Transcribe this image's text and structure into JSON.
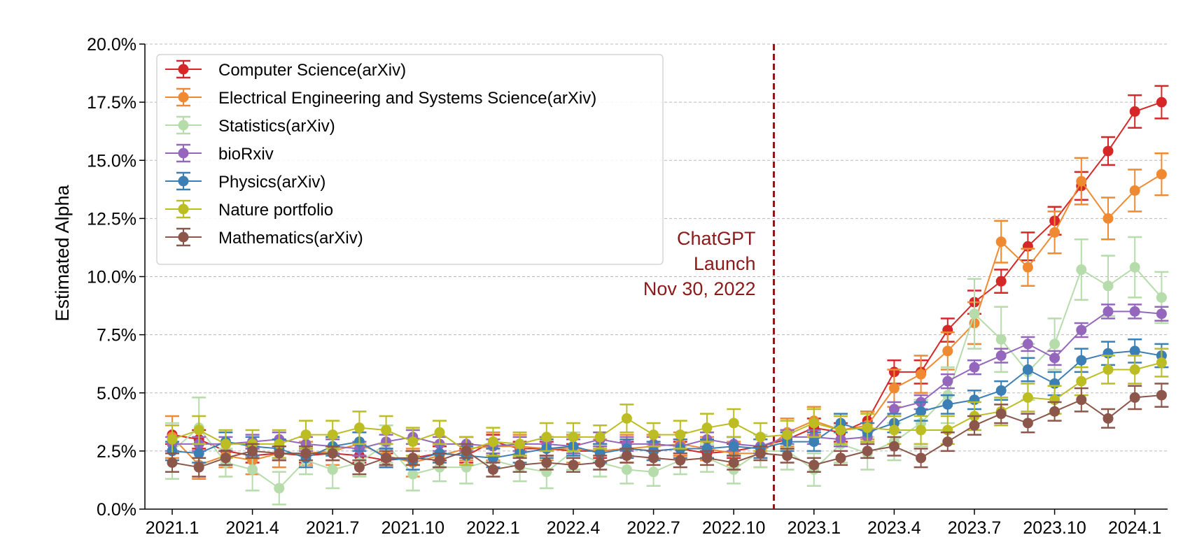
{
  "chart_data": {
    "type": "line",
    "title": "",
    "xlabel": "",
    "ylabel": "Estimated Alpha",
    "y_unit": "%",
    "ylim": [
      0,
      20
    ],
    "y_ticks": [
      0,
      2.5,
      5,
      7.5,
      10,
      12.5,
      15,
      17.5,
      20
    ],
    "y_tick_labels": [
      "0.0%",
      "2.5%",
      "5.0%",
      "7.5%",
      "10.0%",
      "12.5%",
      "15.0%",
      "17.5%",
      "20.0%"
    ],
    "x": [
      "2021.1",
      "2021.2",
      "2021.3",
      "2021.4",
      "2021.5",
      "2021.6",
      "2021.7",
      "2021.8",
      "2021.9",
      "2021.10",
      "2021.11",
      "2021.12",
      "2022.1",
      "2022.2",
      "2022.3",
      "2022.4",
      "2022.5",
      "2022.6",
      "2022.7",
      "2022.8",
      "2022.9",
      "2022.10",
      "2022.11",
      "2022.12",
      "2023.1",
      "2023.2",
      "2023.3",
      "2023.4",
      "2023.5",
      "2023.6",
      "2023.7",
      "2023.8",
      "2023.9",
      "2023.10",
      "2023.11",
      "2023.12",
      "2024.1",
      "2024.2"
    ],
    "x_ticks": [
      "2021.1",
      "2021.4",
      "2021.7",
      "2021.10",
      "2022.1",
      "2022.4",
      "2022.7",
      "2022.10",
      "2023.1",
      "2023.4",
      "2023.7",
      "2023.10",
      "2024.1"
    ],
    "grid": "horizontal",
    "legend_position": "top-left",
    "annotation": {
      "lines": [
        "ChatGPT",
        "Launch",
        "Nov 30, 2022"
      ],
      "x_position": 22.5,
      "color": "#8b1a1a"
    },
    "series": [
      {
        "name": "Computer Science(arXiv)",
        "color": "#d62728",
        "marker_color": "#d62728",
        "values": [
          3.2,
          3.0,
          2.5,
          2.3,
          2.4,
          2.3,
          2.4,
          2.3,
          2.1,
          2.2,
          2.4,
          2.3,
          2.9,
          2.6,
          2.6,
          2.5,
          2.5,
          2.6,
          2.5,
          2.6,
          2.4,
          2.5,
          2.7,
          3.0,
          3.5,
          3.3,
          3.8,
          5.9,
          5.9,
          7.7,
          8.9,
          9.8,
          11.3,
          12.4,
          13.9,
          15.4,
          17.1,
          17.5
        ],
        "errors": [
          0.4,
          0.4,
          0.3,
          0.3,
          0.3,
          0.3,
          0.3,
          0.3,
          0.3,
          0.3,
          0.3,
          0.3,
          0.3,
          0.3,
          0.3,
          0.3,
          0.3,
          0.3,
          0.3,
          0.3,
          0.3,
          0.3,
          0.3,
          0.4,
          0.4,
          0.4,
          0.4,
          0.5,
          0.5,
          0.5,
          0.5,
          0.5,
          0.6,
          0.6,
          0.6,
          0.6,
          0.7,
          0.7
        ]
      },
      {
        "name": "Electrical Engineering and Systems Science(arXiv)",
        "color": "#f08a32",
        "marker_color": "#f08a32",
        "values": [
          3.1,
          1.9,
          2.3,
          2.1,
          2.4,
          2.4,
          2.5,
          2.8,
          2.3,
          2.0,
          2.3,
          2.6,
          2.7,
          2.7,
          2.6,
          2.6,
          2.5,
          2.6,
          2.7,
          2.8,
          2.6,
          2.4,
          2.4,
          3.3,
          3.8,
          3.4,
          3.6,
          5.2,
          5.8,
          6.8,
          8.0,
          11.5,
          10.4,
          11.9,
          14.1,
          12.5,
          13.7,
          14.4
        ],
        "errors": [
          0.9,
          0.6,
          0.5,
          0.6,
          0.6,
          0.5,
          0.6,
          0.5,
          0.5,
          0.6,
          0.5,
          0.5,
          0.6,
          0.5,
          0.5,
          0.6,
          0.5,
          0.6,
          0.5,
          0.5,
          0.5,
          0.5,
          0.6,
          0.6,
          0.6,
          0.6,
          0.6,
          0.8,
          0.8,
          0.8,
          0.9,
          0.9,
          0.8,
          0.9,
          1.0,
          0.9,
          0.9,
          0.9
        ]
      },
      {
        "name": "Statistics(arXiv)",
        "color": "#b5dcaa",
        "marker_color": "#b5dcaa",
        "values": [
          2.5,
          3.5,
          2.0,
          1.7,
          0.9,
          2.1,
          1.7,
          2.0,
          2.8,
          1.5,
          1.8,
          1.8,
          2.1,
          1.8,
          1.6,
          2.5,
          2.0,
          1.7,
          1.6,
          2.1,
          2.2,
          1.7,
          2.5,
          2.5,
          1.7,
          2.8,
          2.4,
          2.9,
          3.7,
          4.9,
          8.4,
          7.3,
          5.9,
          7.1,
          10.3,
          9.6,
          10.4,
          9.1
        ],
        "errors": [
          1.2,
          1.3,
          0.6,
          0.9,
          0.7,
          0.6,
          0.8,
          0.6,
          0.8,
          0.7,
          0.6,
          0.7,
          0.7,
          0.6,
          0.7,
          0.8,
          0.6,
          0.6,
          0.6,
          0.6,
          0.6,
          0.6,
          0.7,
          0.8,
          0.7,
          0.8,
          0.7,
          0.8,
          1.0,
          1.2,
          1.5,
          1.4,
          1.2,
          1.1,
          1.3,
          1.3,
          1.3,
          1.1
        ]
      },
      {
        "name": "bioRxiv",
        "color": "#9467bd",
        "marker_color": "#9467bd",
        "values": [
          2.8,
          2.8,
          2.8,
          2.9,
          3.0,
          2.8,
          2.7,
          2.6,
          2.9,
          3.1,
          2.8,
          2.8,
          2.7,
          2.8,
          2.8,
          2.7,
          3.0,
          2.8,
          2.8,
          2.7,
          3.0,
          2.8,
          2.7,
          3.1,
          3.1,
          3.0,
          3.1,
          4.3,
          4.6,
          5.5,
          6.1,
          6.6,
          7.1,
          6.5,
          7.7,
          8.5,
          8.5,
          8.4
        ],
        "errors": [
          0.3,
          0.3,
          0.3,
          0.3,
          0.3,
          0.3,
          0.3,
          0.3,
          0.3,
          0.3,
          0.3,
          0.3,
          0.3,
          0.3,
          0.3,
          0.3,
          0.3,
          0.3,
          0.3,
          0.3,
          0.3,
          0.3,
          0.3,
          0.3,
          0.3,
          0.3,
          0.3,
          0.3,
          0.3,
          0.3,
          0.3,
          0.3,
          0.3,
          0.3,
          0.3,
          0.3,
          0.3,
          0.3
        ]
      },
      {
        "name": "Physics(arXiv)",
        "color": "#3c7fb5",
        "marker_color": "#3c7fb5",
        "values": [
          2.5,
          2.4,
          2.9,
          2.7,
          2.6,
          2.2,
          2.7,
          2.9,
          2.2,
          2.1,
          2.4,
          2.3,
          2.2,
          2.4,
          2.6,
          2.7,
          2.4,
          2.6,
          2.5,
          2.6,
          2.6,
          2.7,
          2.6,
          2.9,
          2.9,
          3.7,
          3.3,
          3.7,
          4.2,
          4.5,
          4.7,
          5.1,
          6.0,
          5.4,
          6.4,
          6.7,
          6.8,
          6.6
        ],
        "errors": [
          0.4,
          0.4,
          0.4,
          0.4,
          0.4,
          0.4,
          0.4,
          0.4,
          0.4,
          0.4,
          0.4,
          0.4,
          0.4,
          0.4,
          0.4,
          0.4,
          0.4,
          0.4,
          0.4,
          0.4,
          0.4,
          0.4,
          0.4,
          0.4,
          0.4,
          0.4,
          0.4,
          0.4,
          0.4,
          0.4,
          0.4,
          0.4,
          0.5,
          0.5,
          0.5,
          0.5,
          0.5,
          0.5
        ]
      },
      {
        "name": "Nature portfolio",
        "color": "#bcbd22",
        "marker_color": "#bcbd22",
        "values": [
          3.0,
          3.4,
          2.8,
          2.8,
          2.8,
          3.2,
          3.2,
          3.5,
          3.4,
          2.9,
          3.3,
          2.5,
          2.9,
          2.8,
          3.1,
          3.1,
          3.1,
          3.9,
          3.2,
          3.2,
          3.5,
          3.7,
          3.1,
          3.2,
          3.7,
          3.4,
          3.5,
          3.4,
          3.4,
          3.4,
          4.0,
          4.2,
          4.8,
          4.7,
          5.5,
          6.0,
          6.0,
          6.3
        ],
        "errors": [
          0.6,
          0.6,
          0.6,
          0.6,
          0.6,
          0.6,
          0.6,
          0.7,
          0.6,
          0.6,
          0.5,
          0.6,
          0.6,
          0.5,
          0.6,
          0.6,
          0.5,
          0.6,
          0.5,
          0.6,
          0.6,
          0.6,
          0.6,
          0.6,
          0.6,
          0.6,
          0.6,
          0.6,
          0.6,
          0.6,
          0.6,
          0.6,
          0.6,
          0.6,
          0.6,
          0.6,
          0.6,
          0.6
        ]
      },
      {
        "name": "Mathematics(arXiv)",
        "color": "#8c564b",
        "marker_color": "#8c564b",
        "values": [
          2.0,
          1.8,
          2.2,
          2.5,
          2.4,
          2.4,
          2.4,
          1.8,
          2.2,
          2.2,
          2.1,
          2.5,
          1.7,
          1.9,
          2.0,
          1.9,
          2.0,
          2.3,
          2.2,
          2.1,
          2.2,
          2.0,
          2.4,
          2.3,
          1.9,
          2.2,
          2.5,
          2.7,
          2.2,
          2.9,
          3.6,
          4.1,
          3.7,
          4.2,
          4.7,
          3.9,
          4.8,
          4.9
        ],
        "errors": [
          0.4,
          0.4,
          0.3,
          0.3,
          0.3,
          0.3,
          0.3,
          0.3,
          0.3,
          0.3,
          0.3,
          0.3,
          0.3,
          0.3,
          0.3,
          0.3,
          0.3,
          0.3,
          0.3,
          0.3,
          0.3,
          0.3,
          0.3,
          0.3,
          0.3,
          0.3,
          0.3,
          0.4,
          0.4,
          0.4,
          0.4,
          0.4,
          0.4,
          0.4,
          0.5,
          0.4,
          0.5,
          0.5
        ]
      }
    ]
  }
}
